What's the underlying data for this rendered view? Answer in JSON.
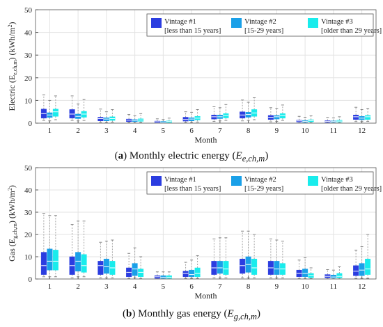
{
  "chart_data": [
    {
      "type": "boxplot",
      "caption": {
        "letter": "a",
        "text": " Monthly electric energy (",
        "math": "E",
        "math_sub": "e,ch,m",
        "close": ")"
      },
      "ylabel": {
        "pre": "Electric (E",
        "sub": "e,ch,m",
        "post": ") (kWh/m",
        "sup": "2",
        "end": ")"
      },
      "xlabel": "Month",
      "ylim": [
        0,
        50
      ],
      "yticks": [
        0,
        10,
        20,
        30,
        40,
        50
      ],
      "categories": [
        "1",
        "2",
        "3",
        "4",
        "5",
        "6",
        "7",
        "8",
        "9",
        "10",
        "11",
        "12"
      ],
      "grid": true,
      "legend": "top-right",
      "series": [
        {
          "name": "Vintage #1",
          "name2": "[less than 15 years]",
          "color": "#2b3de0",
          "stats": [
            [
              1.2,
              2.2,
              4.2,
              6.2,
              12.5
            ],
            [
              1.2,
              2.2,
              4,
              6,
              12
            ],
            [
              0.4,
              1,
              2,
              2.6,
              6.2
            ],
            [
              0.3,
              0.7,
              1.3,
              1.8,
              3.8
            ],
            [
              0.05,
              0.2,
              0.6,
              0.9,
              1.9
            ],
            [
              0.3,
              0.9,
              1.6,
              2.6,
              5
            ],
            [
              0.8,
              1.8,
              2.8,
              3.6,
              7.2
            ],
            [
              1,
              2.2,
              3.6,
              5,
              10.2
            ],
            [
              0.6,
              1.6,
              2.6,
              3.4,
              6.8
            ],
            [
              0.1,
              0.5,
              1,
              1.3,
              3
            ],
            [
              0.1,
              0.4,
              0.8,
              1.1,
              2.5
            ],
            [
              0.7,
              1.6,
              2.8,
              3.6,
              7
            ]
          ]
        },
        {
          "name": "Vintage #2",
          "name2": "[15-29 years]",
          "color": "#1aa0e8",
          "stats": [
            [
              1,
              2.5,
              3.6,
              4.6,
              10
            ],
            [
              1,
              2,
              3,
              4,
              8.5
            ],
            [
              0.3,
              1,
              1.8,
              2.4,
              5
            ],
            [
              0.2,
              0.7,
              1.2,
              1.6,
              3.2
            ],
            [
              0.05,
              0.2,
              0.5,
              0.8,
              1.6
            ],
            [
              0.4,
              1,
              1.8,
              2.4,
              4.8
            ],
            [
              1,
              2,
              2.8,
              3.6,
              6.8
            ],
            [
              1.2,
              2.6,
              3.8,
              4.8,
              9.2
            ],
            [
              0.8,
              1.8,
              2.8,
              3.4,
              6.5
            ],
            [
              0.1,
              0.4,
              0.8,
              1.2,
              2.6
            ],
            [
              0.1,
              0.4,
              0.7,
              1,
              2.3
            ],
            [
              0.7,
              1.5,
              2.2,
              3,
              6
            ]
          ]
        },
        {
          "name": "Vintage #3",
          "name2": "[older than 29 years]",
          "color": "#19ecec",
          "stats": [
            [
              1.5,
              3,
              5,
              6.2,
              12
            ],
            [
              1.2,
              2.6,
              4,
              5.2,
              10.5
            ],
            [
              0.4,
              1.2,
              2,
              2.8,
              6
            ],
            [
              0.3,
              0.8,
              1.4,
              1.9,
              4.2
            ],
            [
              0.1,
              0.3,
              0.7,
              1,
              2.2
            ],
            [
              0.5,
              1.4,
              2.2,
              3,
              6
            ],
            [
              1.2,
              2.3,
              3.4,
              4.2,
              8.2
            ],
            [
              1.5,
              3,
              4.5,
              6,
              11.2
            ],
            [
              1.2,
              2.2,
              3.4,
              4.2,
              8
            ],
            [
              0.2,
              0.6,
              1.1,
              1.5,
              3.2
            ],
            [
              0.2,
              0.5,
              0.9,
              1.3,
              2.8
            ],
            [
              0.8,
              1.6,
              2.8,
              3.4,
              6.5
            ]
          ]
        }
      ]
    },
    {
      "type": "boxplot",
      "caption": {
        "letter": "b",
        "text": " Monthly gas energy (",
        "math": "E",
        "math_sub": "g,ch,m",
        "close": ")"
      },
      "ylabel": {
        "pre": "Gas (E",
        "sub": "g,ch,m",
        "post": ") (kWh/m",
        "sup": "2",
        "end": ")"
      },
      "xlabel": "Month",
      "ylim": [
        0,
        50
      ],
      "yticks": [
        0,
        10,
        20,
        30,
        40,
        50
      ],
      "categories": [
        "1",
        "2",
        "3",
        "4",
        "5",
        "6",
        "7",
        "8",
        "9",
        "10",
        "11",
        "12"
      ],
      "grid": true,
      "legend": "top-right",
      "series": [
        {
          "name": "Vintage #1",
          "name2": "[less than 15 years]",
          "color": "#2b3de0",
          "stats": [
            [
              1,
              2,
              6,
              12,
              29.5
            ],
            [
              0.5,
              2,
              6,
              10,
              24.5
            ],
            [
              0.5,
              2,
              6,
              8,
              16.5
            ],
            [
              0.2,
              1,
              3,
              5,
              11.5
            ],
            [
              0.1,
              0.3,
              1,
              1.5,
              3.2
            ],
            [
              0.3,
              1,
              2.5,
              3.5,
              7.5
            ],
            [
              0.5,
              2,
              5,
              8,
              18
            ],
            [
              0.5,
              2.5,
              6,
              9,
              21.5
            ],
            [
              0.5,
              2,
              5,
              8,
              18
            ],
            [
              0.2,
              1,
              2.5,
              4,
              8.5
            ],
            [
              0.1,
              0.5,
              1.2,
              2,
              4.2
            ],
            [
              0.3,
              1.5,
              3.5,
              6,
              13
            ]
          ]
        },
        {
          "name": "Vintage #2",
          "name2": "[15-29 years]",
          "color": "#1aa0e8",
          "stats": [
            [
              1,
              4,
              8,
              13.5,
              28.5
            ],
            [
              1,
              3.5,
              8,
              12,
              26
            ],
            [
              0.5,
              2.5,
              5.5,
              9,
              17
            ],
            [
              0.5,
              1.5,
              4.5,
              7,
              14
            ],
            [
              0.1,
              0.3,
              0.8,
              1.5,
              3.2
            ],
            [
              0.3,
              1,
              2,
              4,
              8.5
            ],
            [
              0.5,
              2.5,
              5,
              8,
              18.5
            ],
            [
              0.5,
              3,
              6.5,
              10,
              21.5
            ],
            [
              0.5,
              2,
              4.5,
              8,
              17.5
            ],
            [
              0.2,
              1,
              2.5,
              4.5,
              9.5
            ],
            [
              0.1,
              0.4,
              0.9,
              1.8,
              4
            ],
            [
              0.3,
              1.5,
              4,
              7,
              14.5
            ]
          ]
        },
        {
          "name": "Vintage #3",
          "name2": "[older than 29 years]",
          "color": "#19ecec",
          "stats": [
            [
              1,
              4,
              8,
              13,
              28.5
            ],
            [
              1,
              3,
              6,
              11,
              26
            ],
            [
              0.5,
              2,
              5,
              8,
              17.5
            ],
            [
              0.2,
              1,
              3,
              4.5,
              10
            ],
            [
              0.1,
              0.3,
              0.8,
              1.5,
              3.2
            ],
            [
              0.3,
              1,
              2.5,
              5,
              10.5
            ],
            [
              0.5,
              2,
              4.5,
              8,
              18.5
            ],
            [
              0.5,
              2,
              5,
              9,
              20
            ],
            [
              0.5,
              2,
              4.5,
              7,
              17
            ],
            [
              0.2,
              0.6,
              1.5,
              2.5,
              5
            ],
            [
              0.1,
              0.5,
              1.2,
              2.5,
              5.5
            ],
            [
              0.3,
              2,
              4.5,
              9,
              20
            ]
          ]
        }
      ]
    }
  ]
}
